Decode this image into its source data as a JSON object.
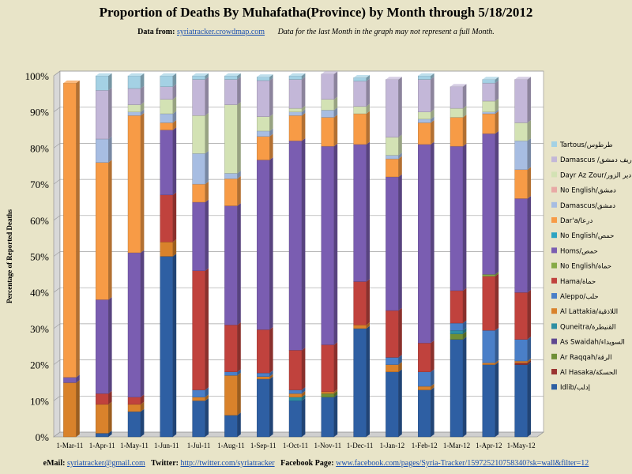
{
  "title": "Proportion of Deaths By Muhafatha(Province) by Month through 5/18/2012",
  "subtitle": {
    "prefix": "Data from:",
    "link": "syriatracker.crowdmap.com",
    "note": "Data for the last Month in the graph may not represent a full Month."
  },
  "footer": {
    "email_label": "eMail:",
    "email": "syriatracker@gmail.com",
    "twitter_label": "Twitter:",
    "twitter": "http://twitter.com/syriatracker",
    "facebook_label": "Facebook  Page:",
    "facebook": "www.facebook.com/pages/Syria-Tracker/159725210758340?sk=wall&filter=12"
  },
  "chart_data": {
    "type": "bar",
    "stacked": true,
    "percent": true,
    "ylabel": "Percentage of Reported Deaths",
    "ylim": [
      0,
      100
    ],
    "yticks": [
      "0%",
      "10%",
      "20%",
      "30%",
      "40%",
      "50%",
      "60%",
      "70%",
      "80%",
      "90%",
      "100%"
    ],
    "grid": true,
    "legend_position": "right",
    "categories": [
      "1-Mar-11",
      "1-Apr-11",
      "1-May-11",
      "1-Jun-11",
      "1-Jul-11",
      "1-Aug-11",
      "1-Sep-11",
      "1-Oct-11",
      "1-Nov-11",
      "1-Dec-11",
      "1-Jan-12",
      "1-Feb-12",
      "1-Mar-12",
      "1-Apr-12",
      "1-May-12"
    ],
    "series": [
      {
        "name": "Idlib/إدلب",
        "color": "#2e5fa3",
        "values": [
          0,
          1,
          7,
          50,
          10,
          6,
          16,
          10,
          11,
          30,
          18,
          13,
          27,
          20,
          20
        ]
      },
      {
        "name": "Al Hasaka/الحسكة",
        "color": "#9a3330",
        "values": [
          0,
          0,
          0,
          0,
          0,
          0,
          0,
          0,
          0,
          0,
          0,
          0,
          0,
          0,
          0.5
        ]
      },
      {
        "name": "Ar Raqqah/الرقة",
        "color": "#6f8f36",
        "values": [
          0,
          0,
          0,
          0,
          0,
          0,
          0,
          0,
          1,
          0,
          0,
          0,
          1.5,
          0,
          0
        ]
      },
      {
        "name": "As Swaidah/السويداء",
        "color": "#5e4790",
        "values": [
          0,
          0,
          0,
          0,
          0,
          0,
          0,
          0,
          0,
          0,
          0,
          0,
          0,
          0,
          0
        ]
      },
      {
        "name": "Quneitra/القنيطرة",
        "color": "#2e8fa3",
        "values": [
          0,
          0,
          0,
          0,
          0,
          0,
          0,
          1,
          0,
          0,
          0,
          0,
          1,
          0,
          0
        ]
      },
      {
        "name": "Al Lattakia/اللاذقية",
        "color": "#d9822b",
        "values": [
          15,
          8,
          2,
          4,
          1,
          11,
          0.7,
          1,
          0.5,
          1,
          2,
          1,
          0,
          0.5,
          0.5
        ]
      },
      {
        "name": "Aleppo/حلب",
        "color": "#4a7fc8",
        "values": [
          0,
          0,
          0,
          0,
          2,
          1,
          1,
          1,
          0,
          0,
          2,
          4,
          2,
          9,
          6
        ]
      },
      {
        "name": "Hama/حماة",
        "color": "#c0423d",
        "values": [
          0,
          3,
          2,
          13,
          33,
          13,
          12,
          11,
          13,
          12,
          13,
          8,
          9,
          15,
          13
        ]
      },
      {
        "name": "No English/حماة",
        "color": "#86aa47",
        "values": [
          0,
          0,
          0,
          0,
          0,
          0,
          0,
          0,
          0,
          0,
          0,
          0,
          0,
          0.5,
          0
        ]
      },
      {
        "name": "Homs/حمص",
        "color": "#7a5db1",
        "values": [
          1.5,
          26,
          40,
          18,
          19,
          33,
          47,
          58,
          55,
          38,
          37,
          55,
          40,
          39,
          26
        ]
      },
      {
        "name": "No English/حمص",
        "color": "#2da3c2",
        "values": [
          0,
          0,
          0,
          0,
          0,
          0,
          0,
          0,
          0,
          0,
          0,
          0,
          0,
          0,
          0
        ]
      },
      {
        "name": "Dar'a/درعا",
        "color": "#f79b46",
        "values": [
          81.5,
          38,
          38,
          2,
          5,
          7.5,
          6.5,
          7,
          8,
          8.5,
          5,
          6,
          8,
          5.5,
          8
        ]
      },
      {
        "name": "Damascus/دمشق",
        "color": "#a7bde2",
        "values": [
          0,
          6.5,
          1,
          2.5,
          8.5,
          1.5,
          1.5,
          1,
          2,
          0,
          1,
          1,
          0,
          0.5,
          8
        ]
      },
      {
        "name": "No English/دمشق",
        "color": "#e8a9a5",
        "values": [
          0,
          0,
          0,
          0,
          0,
          0,
          0,
          0,
          0,
          0,
          0,
          0,
          0,
          0,
          0
        ]
      },
      {
        "name": "Dayr Az Zour/دير الزور",
        "color": "#d3e2b4",
        "values": [
          0,
          0,
          2,
          4,
          10.5,
          19,
          4,
          1,
          3,
          2,
          5,
          2,
          2.5,
          3,
          5
        ]
      },
      {
        "name": "Damascus /ريف دمشق",
        "color": "#c3b7d8",
        "values": [
          0,
          13.5,
          4.5,
          3.5,
          10,
          7,
          10,
          8,
          7,
          7,
          16,
          9,
          6,
          5,
          12
        ]
      },
      {
        "name": "Tartous/طرطوس",
        "color": "#a4d1e4",
        "values": [
          0,
          4,
          3.5,
          3,
          1,
          1,
          1,
          1,
          0,
          1,
          0,
          1,
          0,
          1,
          0
        ]
      }
    ]
  }
}
